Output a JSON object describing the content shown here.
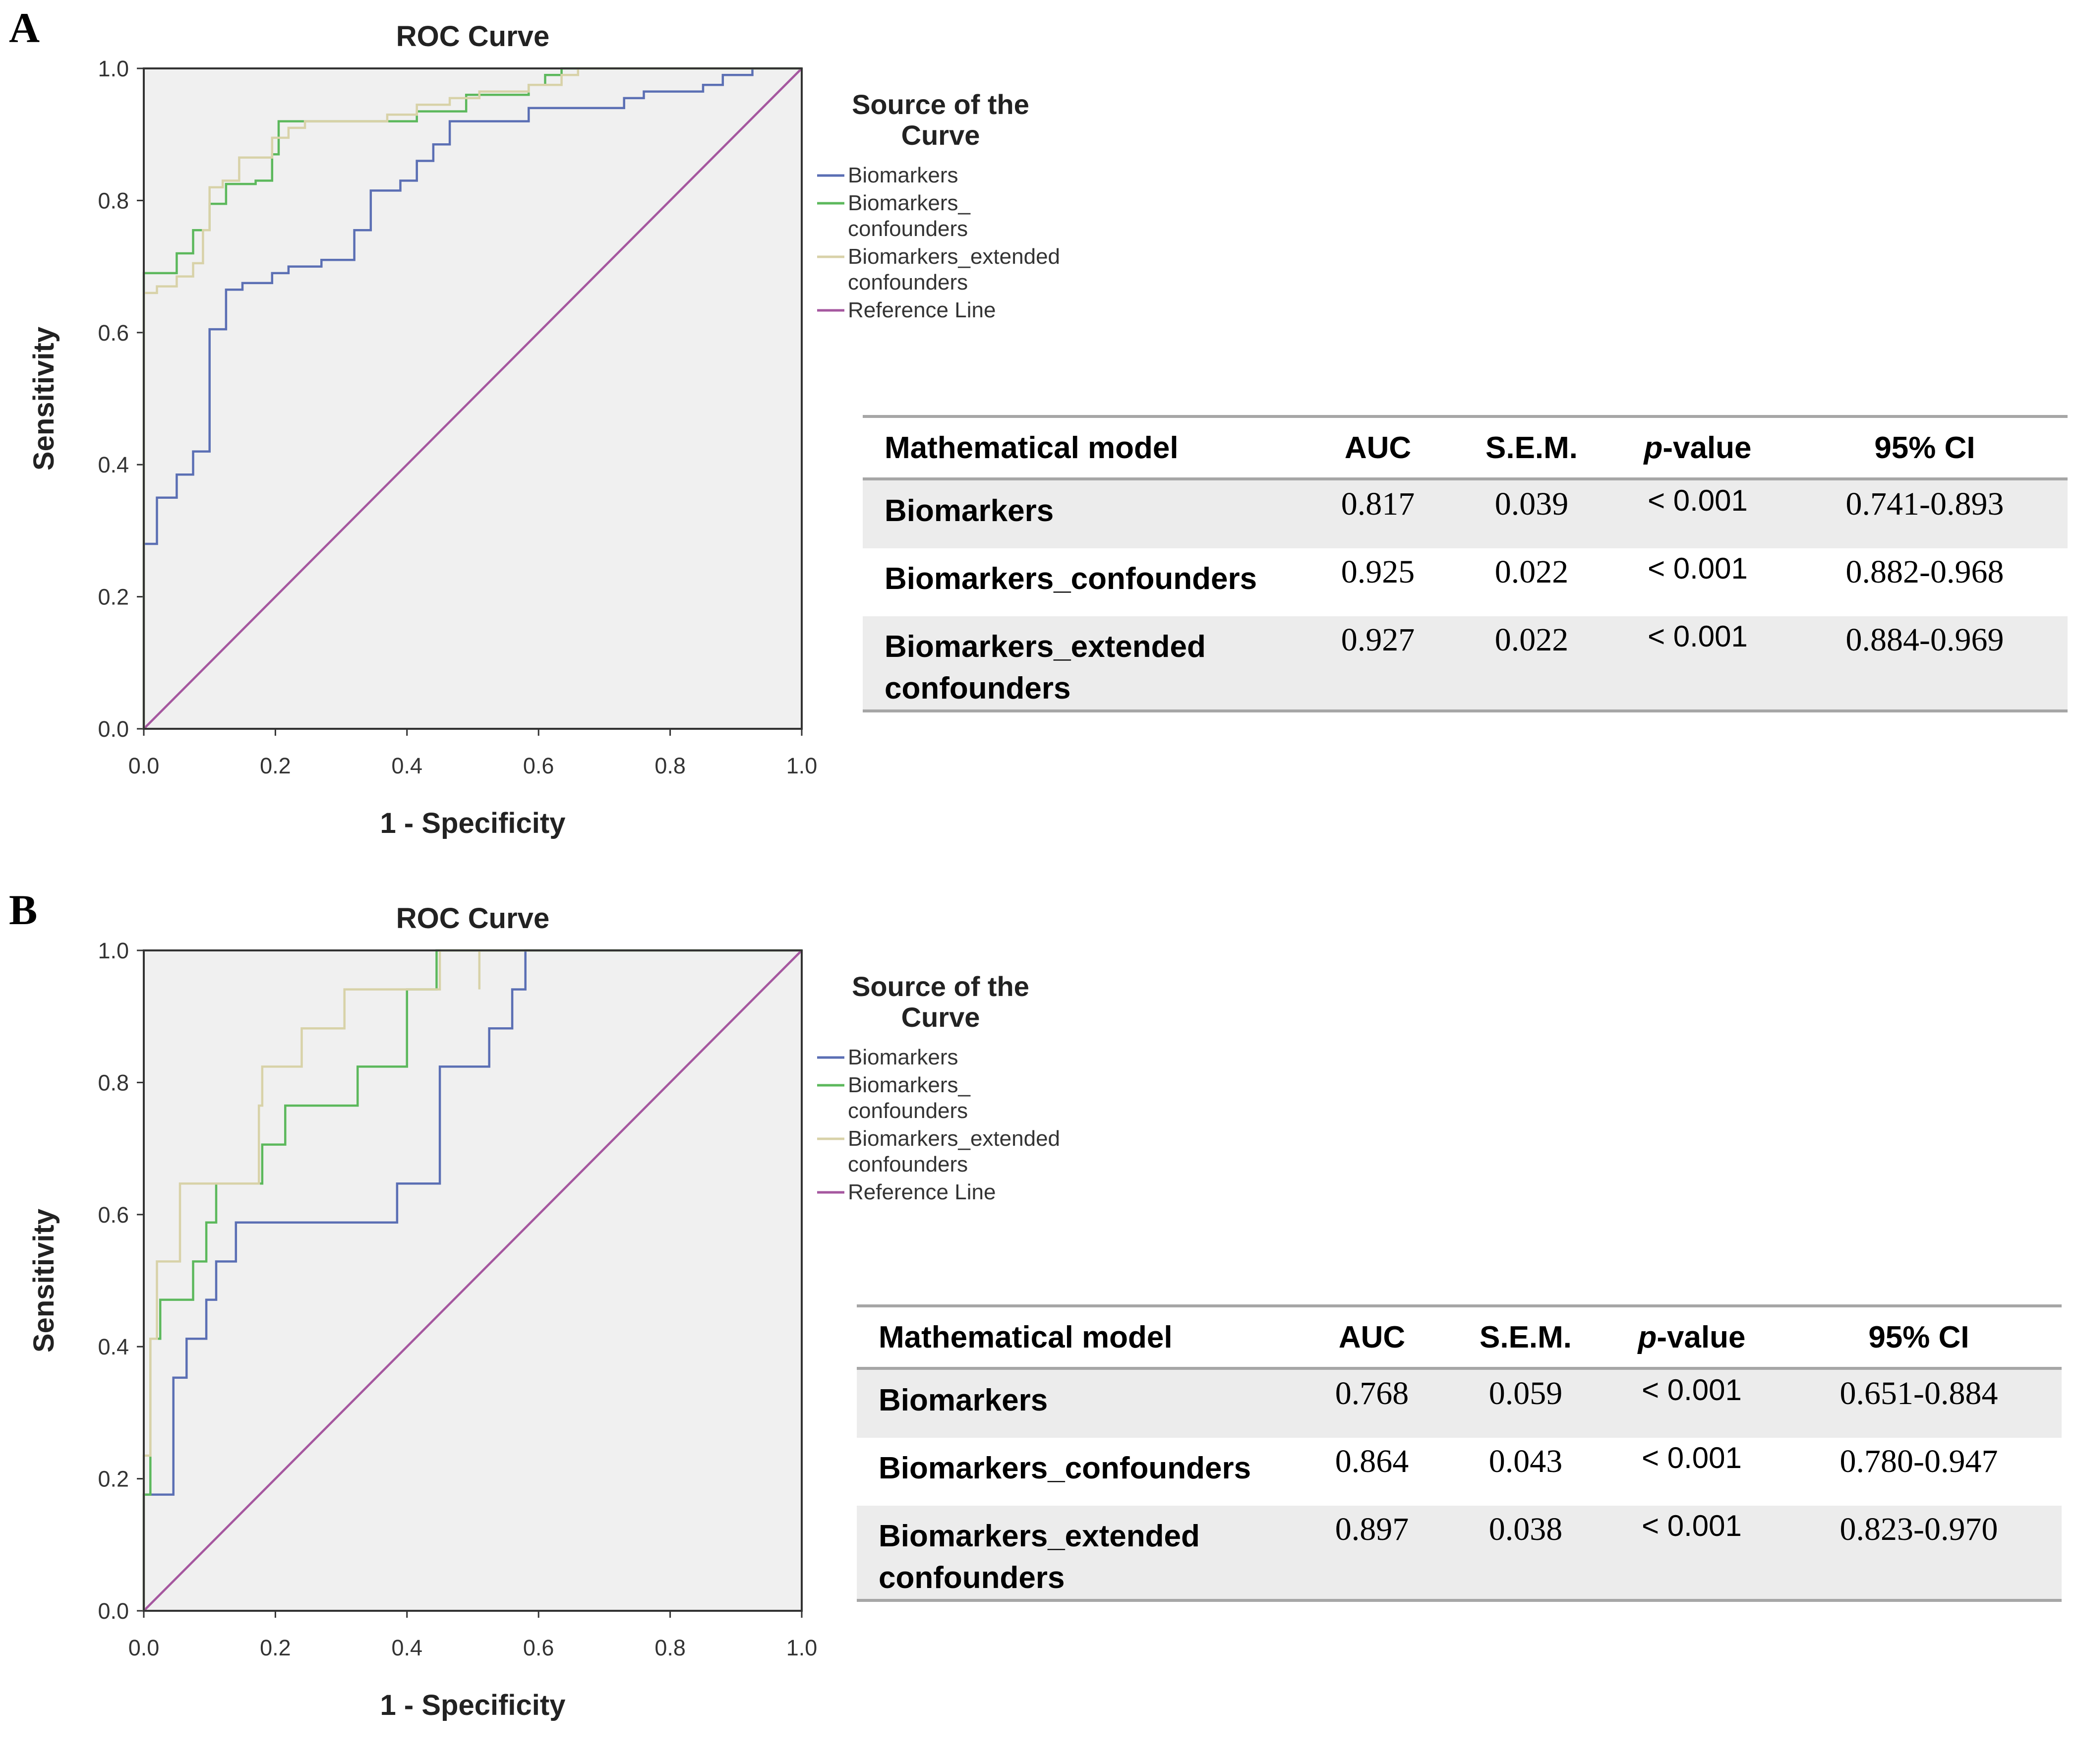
{
  "chart_data": [
    {
      "panel": "A",
      "type": "line",
      "title": "ROC Curve",
      "xlabel": "1 - Specificity",
      "ylabel": "Sensitivity",
      "xlim": [
        0,
        1
      ],
      "ylim": [
        0,
        1
      ],
      "xticks": [
        "0.0",
        "0.2",
        "0.4",
        "0.6",
        "0.8",
        "1.0"
      ],
      "yticks": [
        "0.0",
        "0.2",
        "0.4",
        "0.6",
        "0.8",
        "1.0"
      ],
      "legend_title": "Source of the Curve",
      "legend_position": "right",
      "series": [
        {
          "name": "Biomarkers",
          "legend": [
            "Biomarkers"
          ],
          "color": "#5b6fb4",
          "points": [
            [
              0,
              0
            ],
            [
              0,
              0.28
            ],
            [
              0.02,
              0.28
            ],
            [
              0.02,
              0.35
            ],
            [
              0.05,
              0.35
            ],
            [
              0.05,
              0.385
            ],
            [
              0.075,
              0.385
            ],
            [
              0.075,
              0.42
            ],
            [
              0.1,
              0.42
            ],
            [
              0.1,
              0.605
            ],
            [
              0.125,
              0.605
            ],
            [
              0.125,
              0.665
            ],
            [
              0.15,
              0.665
            ],
            [
              0.15,
              0.675
            ],
            [
              0.195,
              0.675
            ],
            [
              0.195,
              0.69
            ],
            [
              0.22,
              0.69
            ],
            [
              0.22,
              0.7
            ],
            [
              0.27,
              0.7
            ],
            [
              0.27,
              0.71
            ],
            [
              0.32,
              0.71
            ],
            [
              0.32,
              0.755
            ],
            [
              0.345,
              0.755
            ],
            [
              0.345,
              0.815
            ],
            [
              0.39,
              0.815
            ],
            [
              0.39,
              0.83
            ],
            [
              0.415,
              0.83
            ],
            [
              0.415,
              0.86
            ],
            [
              0.44,
              0.86
            ],
            [
              0.44,
              0.885
            ],
            [
              0.465,
              0.885
            ],
            [
              0.465,
              0.92
            ],
            [
              0.585,
              0.92
            ],
            [
              0.585,
              0.94
            ],
            [
              0.73,
              0.94
            ],
            [
              0.73,
              0.955
            ],
            [
              0.76,
              0.955
            ],
            [
              0.76,
              0.965
            ],
            [
              0.85,
              0.965
            ],
            [
              0.85,
              0.975
            ],
            [
              0.88,
              0.975
            ],
            [
              0.88,
              0.99
            ],
            [
              0.925,
              0.99
            ],
            [
              0.925,
              1
            ],
            [
              1,
              1
            ]
          ]
        },
        {
          "name": "Biomarkers_ confounders",
          "legend": [
            "Biomarkers_",
            "confounders"
          ],
          "color": "#5cb85c",
          "points": [
            [
              0,
              0
            ],
            [
              0,
              0.69
            ],
            [
              0.05,
              0.69
            ],
            [
              0.05,
              0.72
            ],
            [
              0.075,
              0.72
            ],
            [
              0.075,
              0.755
            ],
            [
              0.1,
              0.755
            ],
            [
              0.1,
              0.795
            ],
            [
              0.125,
              0.795
            ],
            [
              0.125,
              0.825
            ],
            [
              0.17,
              0.825
            ],
            [
              0.17,
              0.83
            ],
            [
              0.195,
              0.83
            ],
            [
              0.195,
              0.87
            ],
            [
              0.205,
              0.87
            ],
            [
              0.205,
              0.92
            ],
            [
              0.415,
              0.92
            ],
            [
              0.415,
              0.935
            ],
            [
              0.49,
              0.935
            ],
            [
              0.49,
              0.96
            ],
            [
              0.585,
              0.96
            ],
            [
              0.585,
              0.975
            ],
            [
              0.61,
              0.975
            ],
            [
              0.61,
              0.99
            ],
            [
              0.635,
              0.99
            ],
            [
              0.635,
              1
            ],
            [
              1,
              1
            ]
          ]
        },
        {
          "name": "Biomarkers_extended confounders",
          "legend": [
            "Biomarkers_extended",
            "confounders"
          ],
          "color": "#d8d2a8",
          "points": [
            [
              0,
              0
            ],
            [
              0,
              0.66
            ],
            [
              0.02,
              0.66
            ],
            [
              0.02,
              0.67
            ],
            [
              0.05,
              0.67
            ],
            [
              0.05,
              0.685
            ],
            [
              0.075,
              0.685
            ],
            [
              0.075,
              0.705
            ],
            [
              0.09,
              0.705
            ],
            [
              0.09,
              0.755
            ],
            [
              0.1,
              0.755
            ],
            [
              0.1,
              0.82
            ],
            [
              0.12,
              0.82
            ],
            [
              0.12,
              0.83
            ],
            [
              0.145,
              0.83
            ],
            [
              0.145,
              0.865
            ],
            [
              0.195,
              0.865
            ],
            [
              0.195,
              0.895
            ],
            [
              0.22,
              0.895
            ],
            [
              0.22,
              0.91
            ],
            [
              0.245,
              0.91
            ],
            [
              0.245,
              0.92
            ],
            [
              0.37,
              0.92
            ],
            [
              0.37,
              0.93
            ],
            [
              0.415,
              0.93
            ],
            [
              0.415,
              0.945
            ],
            [
              0.465,
              0.945
            ],
            [
              0.465,
              0.955
            ],
            [
              0.51,
              0.955
            ],
            [
              0.51,
              0.965
            ],
            [
              0.585,
              0.965
            ],
            [
              0.585,
              0.975
            ],
            [
              0.635,
              0.975
            ],
            [
              0.635,
              0.99
            ],
            [
              0.66,
              0.99
            ],
            [
              0.66,
              1
            ],
            [
              1,
              1
            ]
          ]
        },
        {
          "name": "Reference Line",
          "legend": [
            "Reference Line"
          ],
          "color": "#a5579f",
          "points": [
            [
              0,
              0
            ],
            [
              1,
              1
            ]
          ]
        }
      ]
    },
    {
      "panel": "B",
      "type": "line",
      "title": "ROC Curve",
      "xlabel": "1 - Specificity",
      "ylabel": "Sensitivity",
      "xlim": [
        0,
        1
      ],
      "ylim": [
        0,
        1
      ],
      "xticks": [
        "0.0",
        "0.2",
        "0.4",
        "0.6",
        "0.8",
        "1.0"
      ],
      "yticks": [
        "0.0",
        "0.2",
        "0.4",
        "0.6",
        "0.8",
        "1.0"
      ],
      "legend_title": "Source of the Curve",
      "legend_position": "right",
      "series": [
        {
          "name": "Biomarkers",
          "legend": [
            "Biomarkers"
          ],
          "color": "#5b6fb4",
          "points": [
            [
              0,
              0
            ],
            [
              0,
              0.176
            ],
            [
              0.045,
              0.176
            ],
            [
              0.045,
              0.353
            ],
            [
              0.065,
              0.353
            ],
            [
              0.065,
              0.412
            ],
            [
              0.095,
              0.412
            ],
            [
              0.095,
              0.471
            ],
            [
              0.11,
              0.471
            ],
            [
              0.11,
              0.529
            ],
            [
              0.14,
              0.529
            ],
            [
              0.14,
              0.588
            ],
            [
              0.385,
              0.588
            ],
            [
              0.385,
              0.647
            ],
            [
              0.45,
              0.647
            ],
            [
              0.45,
              0.824
            ],
            [
              0.525,
              0.824
            ],
            [
              0.525,
              0.882
            ],
            [
              0.56,
              0.882
            ],
            [
              0.56,
              0.941
            ],
            [
              0.58,
              0.941
            ],
            [
              0.58,
              1
            ],
            [
              1,
              1
            ]
          ]
        },
        {
          "name": "Biomarkers_ confounders",
          "legend": [
            "Biomarkers_",
            "confounders"
          ],
          "color": "#5cb85c",
          "points": [
            [
              0,
              0
            ],
            [
              0,
              0.176
            ],
            [
              0.01,
              0.176
            ],
            [
              0.01,
              0.412
            ],
            [
              0.025,
              0.412
            ],
            [
              0.025,
              0.471
            ],
            [
              0.075,
              0.471
            ],
            [
              0.075,
              0.529
            ],
            [
              0.095,
              0.529
            ],
            [
              0.095,
              0.588
            ],
            [
              0.11,
              0.588
            ],
            [
              0.11,
              0.647
            ],
            [
              0.18,
              0.647
            ],
            [
              0.18,
              0.706
            ],
            [
              0.215,
              0.706
            ],
            [
              0.215,
              0.765
            ],
            [
              0.325,
              0.765
            ],
            [
              0.325,
              0.824
            ],
            [
              0.4,
              0.824
            ],
            [
              0.4,
              0.941
            ],
            [
              0.445,
              0.941
            ],
            [
              0.445,
              1
            ],
            [
              1,
              1
            ]
          ]
        },
        {
          "name": "Biomarkers_extended confounders",
          "legend": [
            "Biomarkers_extended",
            "confounders"
          ],
          "color": "#d8d2a8",
          "points": [
            [
              0,
              0
            ],
            [
              0,
              0.235
            ],
            [
              0.01,
              0.235
            ],
            [
              0.01,
              0.412
            ],
            [
              0.02,
              0.412
            ],
            [
              0.02,
              0.529
            ],
            [
              0.055,
              0.529
            ],
            [
              0.055,
              0.647
            ],
            [
              0.175,
              0.647
            ],
            [
              0.175,
              0.765
            ],
            [
              0.18,
              0.765
            ],
            [
              0.18,
              0.824
            ],
            [
              0.24,
              0.824
            ],
            [
              0.24,
              0.882
            ],
            [
              0.305,
              0.882
            ],
            [
              0.305,
              0.941
            ],
            [
              0.45,
              0.941
            ],
            [
              0.45,
              1
            ],
            [
              0.51,
              1
            ],
            [
              0.51,
              0.941
            ],
            [
              0.51,
              1
            ],
            [
              1,
              1
            ]
          ]
        },
        {
          "name": "Reference Line",
          "legend": [
            "Reference Line"
          ],
          "color": "#a5579f",
          "points": [
            [
              0,
              0
            ],
            [
              1,
              1
            ]
          ]
        }
      ]
    }
  ],
  "panels": {
    "a": {
      "letter": "A",
      "table": {
        "headers": {
          "model": "Mathematical model",
          "auc": "AUC",
          "sem": "S.E.M.",
          "p_italic": "p",
          "p_rest": "-value",
          "ci": "95% CI"
        },
        "rows": [
          {
            "name_lines": [
              "Biomarkers"
            ],
            "auc": "0.817",
            "sem": "0.039",
            "p": "< 0.001",
            "ci": "0.741-0.893"
          },
          {
            "name_lines": [
              "Biomarkers_confounders"
            ],
            "auc": "0.925",
            "sem": "0.022",
            "p": "< 0.001",
            "ci": "0.882-0.968"
          },
          {
            "name_lines": [
              "Biomarkers_extended",
              "confounders"
            ],
            "auc": "0.927",
            "sem": "0.022",
            "p": "< 0.001",
            "ci": "0.884-0.969"
          }
        ]
      }
    },
    "b": {
      "letter": "B",
      "table": {
        "headers": {
          "model": "Mathematical model",
          "auc": "AUC",
          "sem": "S.E.M.",
          "p_italic": "p",
          "p_rest": "-value",
          "ci": "95% CI"
        },
        "rows": [
          {
            "name_lines": [
              "Biomarkers"
            ],
            "auc": "0.768",
            "sem": "0.059",
            "p": "< 0.001",
            "ci": "0.651-0.884"
          },
          {
            "name_lines": [
              "Biomarkers_confounders"
            ],
            "auc": "0.864",
            "sem": "0.043",
            "p": "< 0.001",
            "ci": "0.780-0.947"
          },
          {
            "name_lines": [
              "Biomarkers_extended",
              "confounders"
            ],
            "auc": "0.897",
            "sem": "0.038",
            "p": "< 0.001",
            "ci": "0.823-0.970"
          }
        ]
      }
    }
  }
}
